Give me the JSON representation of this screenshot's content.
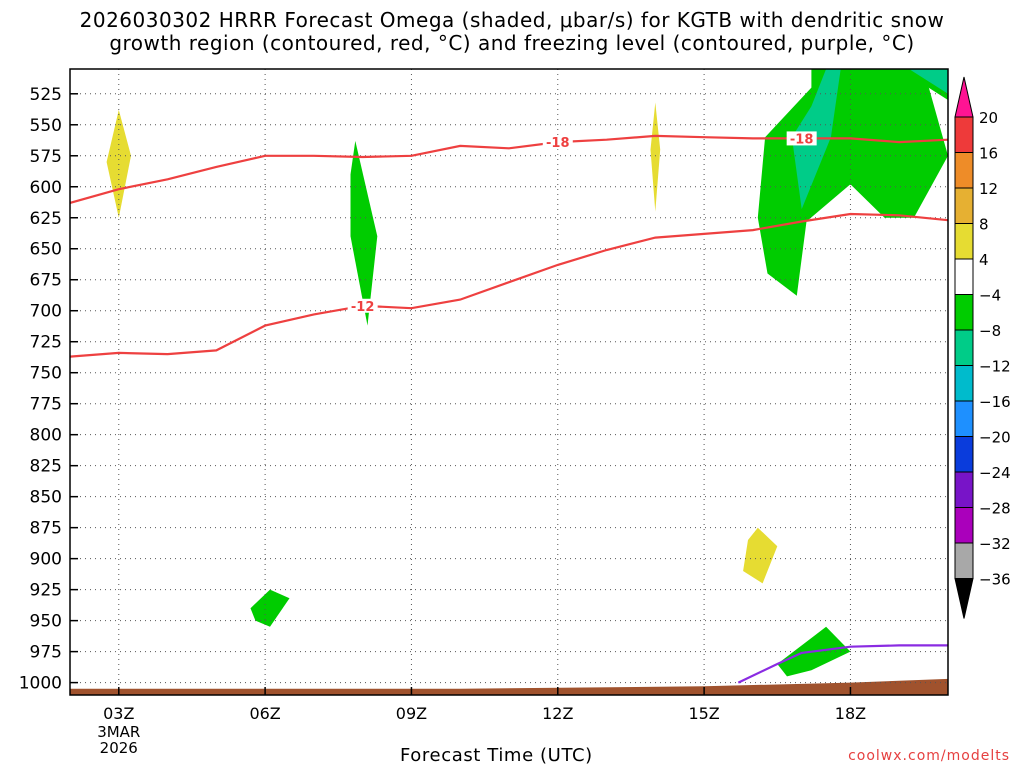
{
  "title_line1": "2026030302 HRRR Forecast Omega (shaded, μbar/s) for KGTB with dendritic snow",
  "title_line2": "growth region (contoured, red, °C) and freezing level (contoured, purple, °C)",
  "credit": "coolwx.com/modelts",
  "chart_data": {
    "type": "heatmap",
    "xlabel": "Forecast Time (UTC)",
    "ylabel": "",
    "x_range_hours": [
      2,
      20
    ],
    "y_range_hpa": [
      1010,
      505
    ],
    "x_ticks": [
      {
        "hour": 3,
        "label": "03Z"
      },
      {
        "hour": 6,
        "label": "06Z"
      },
      {
        "hour": 9,
        "label": "09Z"
      },
      {
        "hour": 12,
        "label": "12Z"
      },
      {
        "hour": 15,
        "label": "15Z"
      },
      {
        "hour": 18,
        "label": "18Z"
      }
    ],
    "x_date_label": [
      "3MAR",
      "2026"
    ],
    "y_ticks": [
      525,
      550,
      575,
      600,
      625,
      650,
      675,
      700,
      725,
      750,
      775,
      800,
      825,
      850,
      875,
      900,
      925,
      950,
      975,
      1000
    ],
    "grid": true,
    "colorbar": {
      "levels": [
        20,
        16,
        12,
        8,
        4,
        -4,
        -8,
        -12,
        -16,
        -20,
        -24,
        -28,
        -32,
        -36
      ],
      "colors": [
        "#ff1493",
        "#ee3a3a",
        "#ee8c28",
        "#e6b032",
        "#e6dc32",
        "#ffffff",
        "#00cc00",
        "#00cc88",
        "#00bbcc",
        "#1e90ff",
        "#0a3cdc",
        "#7814c8",
        "#aa00bb",
        "#a8a8a8",
        "#000000"
      ]
    },
    "contours": [
      {
        "name": "-18",
        "color": "#ee4040",
        "points": [
          [
            2,
            613
          ],
          [
            3,
            602
          ],
          [
            4,
            594
          ],
          [
            5,
            584
          ],
          [
            6,
            575
          ],
          [
            7,
            575
          ],
          [
            8,
            576
          ],
          [
            9,
            575
          ],
          [
            10,
            567
          ],
          [
            11,
            569
          ],
          [
            12,
            564
          ],
          [
            13,
            562
          ],
          [
            14,
            559
          ],
          [
            15,
            560
          ],
          [
            16,
            561
          ],
          [
            17,
            561
          ],
          [
            18,
            561
          ],
          [
            19,
            564
          ],
          [
            20,
            562
          ]
        ]
      },
      {
        "name": "-12",
        "color": "#ee4040",
        "points": [
          [
            2,
            737
          ],
          [
            3,
            734
          ],
          [
            4,
            735
          ],
          [
            5,
            732
          ],
          [
            6,
            712
          ],
          [
            7,
            703
          ],
          [
            8,
            696
          ],
          [
            9,
            698
          ],
          [
            10,
            691
          ],
          [
            11,
            677
          ],
          [
            12,
            663
          ],
          [
            13,
            651
          ],
          [
            14,
            641
          ],
          [
            15,
            638
          ],
          [
            16,
            635
          ],
          [
            17,
            628
          ],
          [
            18,
            622
          ],
          [
            19,
            623
          ],
          [
            20,
            627
          ]
        ]
      },
      {
        "name": "freezing",
        "color": "#8a2be2",
        "points": [
          [
            15.7,
            1000
          ],
          [
            16.5,
            985
          ],
          [
            17,
            976
          ],
          [
            18,
            971
          ],
          [
            19,
            970
          ],
          [
            20,
            970
          ]
        ]
      }
    ],
    "shaded_regions": [
      {
        "level": 4,
        "points": [
          [
            2.5,
            505
          ],
          [
            3.5,
            505
          ],
          [
            4.5,
            570
          ],
          [
            5.5,
            690
          ],
          [
            5.9,
            745
          ],
          [
            6,
            789
          ],
          [
            3,
            790
          ],
          [
            2.5,
            700
          ],
          [
            2.5,
            600
          ]
        ]
      },
      {
        "level": 8,
        "points": [
          [
            3,
            538
          ],
          [
            3.25,
            575
          ],
          [
            3,
            625
          ],
          [
            2.75,
            580
          ]
        ]
      },
      {
        "level": -4,
        "points": [
          [
            7.85,
            563
          ],
          [
            8.3,
            640
          ],
          [
            8.1,
            712
          ],
          [
            7.75,
            640
          ],
          [
            7.75,
            590
          ]
        ]
      },
      {
        "level": 4,
        "points": [
          [
            13.1,
            505
          ],
          [
            14.7,
            505
          ],
          [
            14.6,
            620
          ],
          [
            14.3,
            680
          ],
          [
            13.5,
            640
          ],
          [
            13.1,
            580
          ]
        ]
      },
      {
        "level": 8,
        "points": [
          [
            14,
            532
          ],
          [
            14.1,
            570
          ],
          [
            14,
            620
          ],
          [
            13.9,
            570
          ]
        ]
      },
      {
        "level": -4,
        "points": [
          [
            17.2,
            505
          ],
          [
            19.5,
            505
          ],
          [
            19.75,
            540
          ],
          [
            20,
            575
          ],
          [
            19.3,
            625
          ],
          [
            18.7,
            625
          ],
          [
            18,
            598
          ],
          [
            17.1,
            628
          ],
          [
            16.9,
            688
          ],
          [
            16.3,
            670
          ],
          [
            16.1,
            625
          ],
          [
            16.25,
            560
          ],
          [
            17.2,
            520
          ]
        ]
      },
      {
        "level": -8,
        "points": [
          [
            17.5,
            505
          ],
          [
            17.8,
            505
          ],
          [
            17.6,
            560
          ],
          [
            17,
            618
          ],
          [
            16.8,
            560
          ],
          [
            17.2,
            535
          ]
        ]
      },
      {
        "level": -4,
        "points": [
          [
            18.9,
            505
          ],
          [
            20,
            505
          ],
          [
            20,
            530
          ],
          [
            19.4,
            515
          ]
        ]
      },
      {
        "level": -8,
        "points": [
          [
            19.2,
            505
          ],
          [
            20,
            505
          ],
          [
            20,
            525
          ]
        ]
      },
      {
        "level": 4,
        "points": [
          [
            13.1,
            880
          ],
          [
            14,
            850
          ],
          [
            15,
            875
          ],
          [
            15.8,
            860
          ],
          [
            16.8,
            828
          ],
          [
            18,
            785
          ],
          [
            19.1,
            740
          ],
          [
            20,
            755
          ],
          [
            20,
            840
          ],
          [
            18.5,
            870
          ],
          [
            17.6,
            925
          ],
          [
            16.4,
            948
          ],
          [
            15.2,
            967
          ],
          [
            15,
            1000
          ],
          [
            14,
            1000
          ],
          [
            14.2,
            955
          ],
          [
            13.6,
            895
          ]
        ]
      },
      {
        "level": 8,
        "points": [
          [
            16.1,
            875
          ],
          [
            16.5,
            890
          ],
          [
            16.2,
            920
          ],
          [
            15.8,
            910
          ],
          [
            15.9,
            885
          ]
        ]
      },
      {
        "level": 4,
        "points": [
          [
            9.7,
            840
          ],
          [
            11,
            855
          ],
          [
            11,
            870
          ],
          [
            9.7,
            895
          ]
        ]
      },
      {
        "level": -4,
        "points": [
          [
            16.5,
            985
          ],
          [
            17.5,
            955
          ],
          [
            18,
            975
          ],
          [
            17.2,
            990
          ],
          [
            16.7,
            995
          ]
        ]
      },
      {
        "level": -4,
        "points": [
          [
            5.7,
            940
          ],
          [
            6.1,
            925
          ],
          [
            6.5,
            932
          ],
          [
            6.1,
            955
          ],
          [
            5.8,
            950
          ]
        ]
      },
      {
        "level": 4,
        "points": [
          [
            3,
            1000
          ],
          [
            5,
            990
          ],
          [
            7,
            996
          ],
          [
            10,
            995
          ],
          [
            13,
            998
          ],
          [
            14,
            996
          ],
          [
            14.2,
            1003
          ],
          [
            3,
            1003
          ]
        ]
      }
    ],
    "ground": {
      "color": "#a0522d",
      "points": [
        [
          2,
          1005
        ],
        [
          10,
          1005
        ],
        [
          15,
          1003
        ],
        [
          18,
          1000
        ],
        [
          20,
          997
        ]
      ]
    }
  }
}
